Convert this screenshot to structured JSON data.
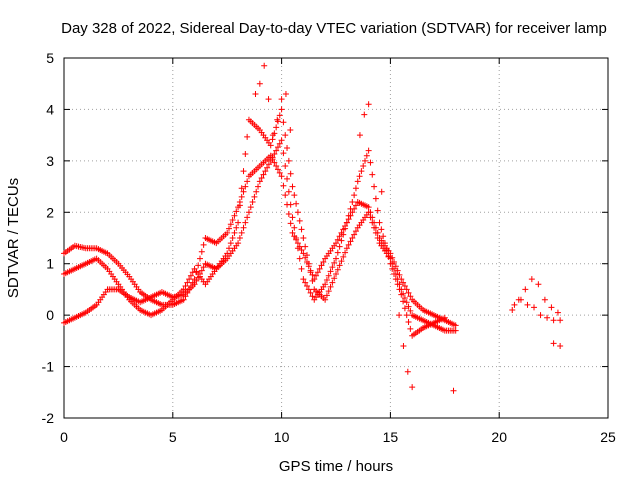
{
  "chart_data": {
    "type": "scatter",
    "title": "Day 328 of 2022, Sidereal Day-to-day VTEC variation (SDTVAR) for receiver lamp",
    "xlabel": "GPS time / hours",
    "ylabel": "SDTVAR / TECUs",
    "xlim": [
      0,
      25
    ],
    "ylim": [
      -2,
      5
    ],
    "xticks": [
      "0",
      "5",
      "10",
      "15",
      "20",
      "25"
    ],
    "yticks": [
      "-2",
      "-1",
      "0",
      "1",
      "2",
      "3",
      "4",
      "5"
    ],
    "grid": true,
    "marker": "plus",
    "color": "#ff0000",
    "series": [
      {
        "name": "trace-a",
        "x": [
          0.0,
          0.5,
          1.0,
          1.5,
          2.0,
          2.5,
          3.0,
          3.5,
          4.0,
          4.5,
          5.0,
          5.5,
          6.0,
          6.5,
          7.0,
          7.5,
          8.0,
          8.5,
          9.0,
          9.5,
          10.0,
          10.5,
          11.0,
          11.5,
          12.0,
          12.5,
          13.0,
          13.5,
          14.0,
          14.5,
          15.0,
          15.5,
          16.0,
          16.5,
          17.0,
          17.5,
          18.0
        ],
        "y": [
          1.2,
          1.35,
          1.3,
          1.3,
          1.2,
          1.0,
          0.75,
          0.45,
          0.3,
          0.2,
          0.2,
          0.3,
          0.7,
          1.5,
          1.4,
          1.6,
          2.1,
          2.7,
          2.9,
          3.1,
          2.7,
          1.6,
          1.2,
          0.7,
          1.1,
          1.4,
          1.8,
          2.2,
          2.1,
          1.5,
          1.2,
          0.7,
          0.3,
          0.1,
          0.0,
          -0.1,
          -0.2
        ]
      },
      {
        "name": "trace-b",
        "x": [
          0.0,
          0.5,
          1.0,
          1.5,
          2.0,
          2.5,
          3.0,
          3.5,
          4.0,
          4.5,
          5.0,
          5.5,
          6.0,
          6.5,
          7.0,
          7.5,
          8.0,
          8.5,
          9.0,
          9.5,
          10.0,
          10.5,
          11.0,
          11.5,
          12.0,
          12.5,
          13.0,
          13.5,
          14.0,
          14.5,
          15.0,
          15.5,
          16.0,
          16.5,
          17.0,
          17.5,
          18.0
        ],
        "y": [
          0.8,
          0.9,
          1.0,
          1.1,
          0.9,
          0.6,
          0.3,
          0.1,
          0.0,
          0.1,
          0.3,
          0.5,
          0.9,
          0.6,
          0.9,
          1.2,
          1.8,
          3.8,
          3.6,
          3.3,
          4.0,
          2.5,
          1.5,
          0.5,
          0.3,
          0.8,
          1.3,
          1.7,
          2.0,
          1.4,
          1.1,
          0.5,
          0.0,
          -0.1,
          -0.2,
          -0.3,
          -0.3
        ]
      },
      {
        "name": "trace-c",
        "x": [
          0.0,
          0.5,
          1.0,
          1.5,
          2.0,
          2.5,
          3.0,
          3.5,
          4.0,
          4.5,
          5.0,
          5.5,
          6.0,
          6.5,
          7.0,
          7.5,
          8.0,
          8.5,
          9.0,
          9.5,
          10.0,
          10.5,
          11.0,
          11.5,
          12.0,
          12.5,
          13.0,
          13.5,
          14.0,
          14.5,
          15.0,
          15.5,
          16.0,
          16.5,
          17.0,
          17.5
        ],
        "y": [
          -0.15,
          -0.05,
          0.05,
          0.2,
          0.5,
          0.5,
          0.35,
          0.25,
          0.35,
          0.45,
          0.35,
          0.4,
          0.6,
          1.0,
          0.9,
          1.1,
          1.4,
          2.0,
          2.6,
          3.0,
          3.4,
          1.9,
          0.7,
          0.3,
          0.6,
          1.1,
          1.8,
          2.6,
          3.2,
          1.8,
          1.0,
          0.4,
          -0.4,
          -0.25,
          -0.15,
          -0.05
        ]
      },
      {
        "name": "late-burst",
        "x": [
          8.8,
          9.0,
          9.2,
          9.4,
          9.6,
          9.8,
          10.0,
          10.2,
          10.4,
          13.6,
          13.8,
          14.0,
          15.4,
          15.6,
          15.8,
          16.0
        ],
        "y": [
          4.3,
          4.5,
          4.85,
          4.2,
          3.5,
          3.8,
          4.2,
          4.3,
          3.6,
          3.5,
          3.9,
          4.1,
          0.0,
          -0.6,
          -1.1,
          -1.4
        ]
      },
      {
        "name": "isolated",
        "x": [
          14.6,
          17.9
        ],
        "y": [
          2.4,
          -1.47
        ]
      },
      {
        "name": "evening-cluster",
        "x": [
          20.6,
          20.9,
          21.2,
          21.5,
          21.8,
          22.1,
          22.4,
          22.7,
          20.7,
          21.0,
          21.3,
          21.6,
          21.9,
          22.2,
          22.5,
          22.8,
          22.5,
          22.8
        ],
        "y": [
          0.1,
          0.3,
          0.5,
          0.7,
          0.6,
          0.3,
          0.15,
          0.05,
          0.2,
          0.3,
          0.2,
          0.15,
          0.0,
          -0.05,
          -0.1,
          -0.1,
          -0.55,
          -0.6
        ]
      }
    ]
  }
}
